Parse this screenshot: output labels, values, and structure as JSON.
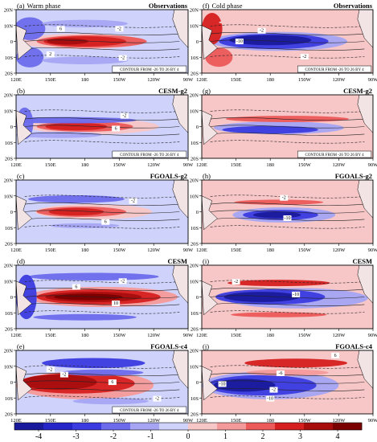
{
  "chart_data": [
    {
      "type": "heatmap",
      "panel_id": "(a)",
      "title": "Warm phase",
      "model": "Observations",
      "phase": "warm",
      "contour_note": "CONTOUR FROM -26 TO 26 BY 4",
      "contour_labels": [
        "6",
        "-2",
        "2",
        "-2"
      ],
      "show_xticks": false
    },
    {
      "type": "heatmap",
      "panel_id": "(b)",
      "title": "",
      "model": "CESM-g2",
      "phase": "warm",
      "contour_note": "CONTOUR FROM -26 TO 26 BY 4",
      "contour_labels": [
        "6",
        "-2"
      ],
      "show_xticks": false
    },
    {
      "type": "heatmap",
      "panel_id": "(c)",
      "title": "",
      "model": "FGOALS-g2",
      "phase": "warm",
      "contour_note": "",
      "contour_labels": [
        "-2",
        "6"
      ],
      "show_xticks": false
    },
    {
      "type": "heatmap",
      "panel_id": "(d)",
      "title": "",
      "model": "CESM",
      "phase": "warm",
      "contour_note": "",
      "contour_labels": [
        "6",
        "-2",
        "10"
      ],
      "show_xticks": false
    },
    {
      "type": "heatmap",
      "panel_id": "(e)",
      "title": "",
      "model": "FGOALS-c4",
      "phase": "warm",
      "contour_note": "CONTOUR FROM -26 TO 26 BY 4",
      "contour_labels": [
        "-2",
        "-2",
        "6",
        "-2"
      ],
      "show_xticks": true
    },
    {
      "type": "heatmap",
      "panel_id": "(f)",
      "title": "Cold phase",
      "model": "Observations",
      "phase": "cold",
      "contour_note": "CONTOUR FROM -26 TO 26 BY 4",
      "contour_labels": [
        "-2",
        "-10",
        "-2"
      ],
      "show_xticks": false
    },
    {
      "type": "heatmap",
      "panel_id": "(g)",
      "title": "",
      "model": "CESM-g2",
      "phase": "cold",
      "contour_note": "CONTOUR FROM -26 TO 26 BY 4",
      "contour_labels": [],
      "show_xticks": false
    },
    {
      "type": "heatmap",
      "panel_id": "(h)",
      "title": "",
      "model": "FGOALS-g2",
      "phase": "cold",
      "contour_note": "",
      "contour_labels": [
        "-2",
        "-10"
      ],
      "show_xticks": false
    },
    {
      "type": "heatmap",
      "panel_id": "(i)",
      "title": "",
      "model": "CESM",
      "phase": "cold",
      "contour_note": "",
      "contour_labels": [
        "-2",
        "-10"
      ],
      "show_xticks": false
    },
    {
      "type": "heatmap",
      "panel_id": "(j)",
      "title": "",
      "model": "FGOALS-c4",
      "phase": "cold",
      "contour_note": "",
      "contour_labels": [
        "6",
        "-6",
        "-10",
        "-2",
        "-10"
      ],
      "show_xticks": true
    }
  ],
  "axes": {
    "lat_ticks": [
      "20N",
      "10N",
      "0",
      "10S",
      "20S"
    ],
    "lon_ticks": [
      "120E",
      "150E",
      "180",
      "150W",
      "120W",
      "90W"
    ]
  },
  "colorbar": {
    "tick_labels": [
      "-4",
      "-3",
      "-2",
      "-1",
      "0",
      "1",
      "2",
      "3",
      "4"
    ],
    "colors": [
      "#1a1a9c",
      "#2525c8",
      "#3b3bdf",
      "#6b6bec",
      "#a5a5f4",
      "#cfd3fb",
      "#f7c6c6",
      "#f59a9a",
      "#ec5a5a",
      "#d61f1f",
      "#a80d0d",
      "#7a0000"
    ]
  }
}
